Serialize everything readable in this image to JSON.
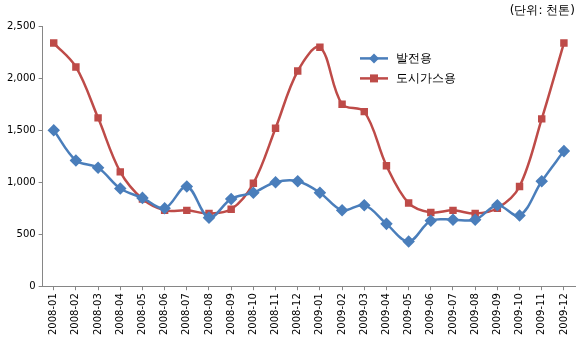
{
  "chart_data": {
    "type": "line",
    "ylabel": "(단위: 천톤)",
    "categories": [
      "2008-01",
      "2008-02",
      "2008-03",
      "2008-04",
      "2008-05",
      "2008-06",
      "2008-07",
      "2008-08",
      "2008-09",
      "2008-10",
      "2008-11",
      "2008-12",
      "2009-01",
      "2009-02",
      "2009-03",
      "2009-04",
      "2009-05",
      "2009-06",
      "2009-07",
      "2009-08",
      "2009-09",
      "2009-10",
      "2009-11",
      "2009-12"
    ],
    "series": [
      {
        "name": "발전용",
        "color": "#4a7ebb",
        "marker": "diamond",
        "values": [
          1500,
          1210,
          1140,
          940,
          850,
          750,
          960,
          660,
          840,
          900,
          1000,
          1010,
          900,
          730,
          780,
          600,
          430,
          630,
          640,
          640,
          780,
          680,
          1010,
          1300
        ]
      },
      {
        "name": "도시가스용",
        "color": "#be4b48",
        "marker": "square",
        "values": [
          2340,
          2110,
          1620,
          1100,
          840,
          730,
          730,
          700,
          740,
          990,
          1520,
          2070,
          2300,
          1750,
          1680,
          1160,
          800,
          710,
          730,
          700,
          750,
          960,
          1610,
          2340
        ]
      }
    ],
    "ylim": [
      0,
      2500
    ],
    "yticks": [
      0,
      500,
      {
        "value": 1000,
        "label": "1,000"
      },
      {
        "value": 1500,
        "label": "1,500"
      },
      {
        "value": 2000,
        "label": "2,000"
      },
      {
        "value": 2500,
        "label": "2,500"
      }
    ],
    "grid": false,
    "legend": "upper right"
  }
}
